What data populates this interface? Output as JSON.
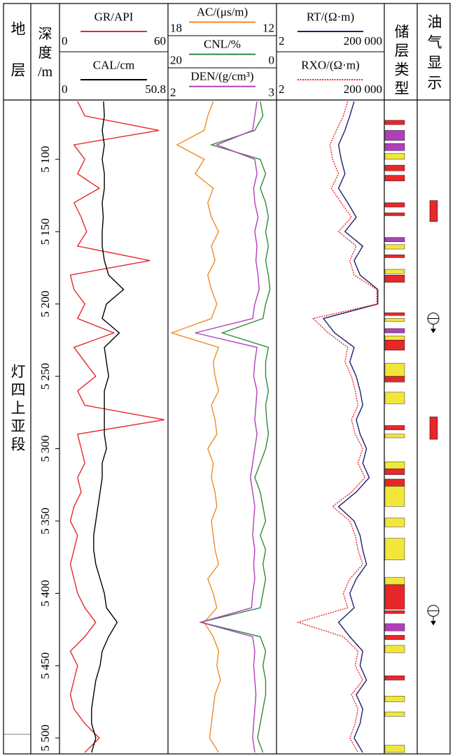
{
  "stratum_header": "地层",
  "depth_header": [
    "深",
    "度",
    "/m"
  ],
  "reservoir_header": "储层类型",
  "show_header": "油气显示",
  "stratum": "灯四上亚段",
  "chart_data": {
    "type": "welllog",
    "ylim": [
      5059,
      5511
    ],
    "yticks": [
      {
        "value": 5100,
        "label": "5 100"
      },
      {
        "value": 5150,
        "label": "5 150"
      },
      {
        "value": 5200,
        "label": "5 200"
      },
      {
        "value": 5250,
        "label": "5 250"
      },
      {
        "value": 5300,
        "label": "5 300"
      },
      {
        "value": 5350,
        "label": "5 350"
      },
      {
        "value": 5400,
        "label": "5 400"
      },
      {
        "value": 5450,
        "label": "5 450"
      },
      {
        "value": 5500,
        "label": "5 500"
      }
    ],
    "x": [
      5060,
      5070,
      5080,
      5090,
      5100,
      5110,
      5120,
      5130,
      5140,
      5150,
      5160,
      5170,
      5180,
      5190,
      5200,
      5210,
      5220,
      5230,
      5240,
      5250,
      5260,
      5270,
      5280,
      5290,
      5300,
      5310,
      5320,
      5330,
      5340,
      5350,
      5360,
      5370,
      5380,
      5390,
      5400,
      5410,
      5420,
      5430,
      5440,
      5450,
      5460,
      5470,
      5480,
      5490,
      5500,
      5510
    ],
    "series": [
      {
        "name": "GR/API",
        "color": "#e8272a",
        "xlim": [
          0,
          60
        ],
        "values": [
          10,
          14,
          55,
          8,
          14,
          10,
          22,
          8,
          12,
          15,
          10,
          50,
          6,
          8,
          14,
          10,
          30,
          8,
          14,
          20,
          10,
          14,
          58,
          10,
          12,
          14,
          10,
          12,
          8,
          6,
          10,
          8,
          6,
          8,
          10,
          14,
          20,
          14,
          6,
          10,
          8,
          6,
          8,
          14,
          22,
          14
        ]
      },
      {
        "name": "CAL/cm",
        "color": "#000000",
        "xlim": [
          0,
          50.8
        ],
        "values": [
          20.6,
          21,
          20,
          21,
          20,
          21,
          21,
          20,
          20.5,
          20,
          20,
          21,
          23,
          30,
          22,
          20,
          28,
          21,
          22,
          23,
          21,
          21,
          21,
          21,
          22,
          20,
          20,
          19,
          18,
          17,
          16,
          16,
          17,
          19,
          21,
          22,
          27,
          23,
          20,
          19,
          17,
          16,
          15,
          15,
          17,
          15
        ]
      },
      {
        "name": "AC/(μs/m)",
        "color": "#f08a24",
        "xlim": [
          18,
          12
        ],
        "values": [
          15.5,
          15.8,
          16,
          17.5,
          16,
          16.5,
          15.5,
          15.8,
          15.6,
          15.2,
          15.6,
          15.4,
          15.8,
          15.6,
          15.3,
          15.6,
          17.8,
          15.2,
          15.5,
          15.4,
          15.2,
          15.6,
          15.4,
          15.3,
          15.8,
          15.5,
          15.6,
          15.4,
          15.3,
          15.6,
          15.5,
          15.4,
          15.2,
          15.8,
          15.5,
          15.3,
          16,
          15.5,
          15.2,
          15.3,
          15.1,
          15.4,
          15.5,
          15.6,
          15.7,
          15.2
        ]
      },
      {
        "name": "CNL/%",
        "color": "#2e8b3a",
        "xlim": [
          20,
          0
        ],
        "values": [
          3,
          2.5,
          4,
          12,
          3,
          2,
          3,
          2,
          1.5,
          2,
          1.5,
          2,
          1.5,
          1.2,
          2,
          2.5,
          10,
          1.5,
          2,
          2,
          1.5,
          2,
          1.8,
          1.5,
          2,
          3,
          4,
          3,
          2.5,
          2,
          3,
          2,
          2.5,
          2,
          2.5,
          3,
          14,
          3,
          2,
          2.5,
          2,
          2,
          2.5,
          3,
          3.5,
          2.5
        ]
      },
      {
        "name": "DEN/(g/cm³)",
        "color": "#b03fb8",
        "xlim": [
          2,
          3
        ],
        "values": [
          2.82,
          2.8,
          2.78,
          2.45,
          2.8,
          2.82,
          2.79,
          2.8,
          2.83,
          2.8,
          2.82,
          2.81,
          2.83,
          2.84,
          2.8,
          2.78,
          2.25,
          2.82,
          2.8,
          2.79,
          2.82,
          2.81,
          2.8,
          2.82,
          2.8,
          2.78,
          2.76,
          2.78,
          2.8,
          2.79,
          2.78,
          2.8,
          2.79,
          2.8,
          2.78,
          2.77,
          2.3,
          2.78,
          2.8,
          2.79,
          2.8,
          2.81,
          2.8,
          2.79,
          2.78,
          2.8
        ]
      },
      {
        "name": "RT/(Ω·m)",
        "color": "#1f1f6e",
        "log": true,
        "xlim": [
          2,
          {
            "value": 200000,
            "label": "200 000"
          }
        ],
        "values": [
          8000,
          5000,
          3000,
          1500,
          2000,
          3000,
          1500,
          4000,
          10000,
          3000,
          20000,
          8000,
          15000,
          100000,
          100000,
          300,
          1000,
          8000,
          5000,
          10000,
          15000,
          20000,
          10000,
          15000,
          30000,
          20000,
          40000,
          10000,
          1500,
          8000,
          15000,
          20000,
          30000,
          10000,
          5000,
          8000,
          1500,
          5000,
          20000,
          15000,
          30000,
          10000,
          20000,
          15000,
          8000,
          20000
        ]
      },
      {
        "name": "RXO/(Ω·m)",
        "color": "#e8272a",
        "log": true,
        "line_style": "dotted",
        "xlim": [
          2,
          {
            "value": 200000,
            "label": "200 000"
          }
        ],
        "values": [
          4000,
          2500,
          1200,
          600,
          800,
          1500,
          700,
          2000,
          6000,
          1500,
          10000,
          5000,
          8000,
          90000,
          90000,
          100,
          500,
          4000,
          3000,
          6000,
          9000,
          12000,
          6000,
          9000,
          20000,
          12000,
          25000,
          6000,
          800,
          5000,
          9000,
          12000,
          20000,
          5000,
          2500,
          4000,
          20,
          2500,
          12000,
          9000,
          20000,
          6000,
          12000,
          9000,
          5000,
          12000
        ]
      }
    ],
    "intervals": [
      {
        "top": 5073,
        "bottom": 5076,
        "color": "#e8272a"
      },
      {
        "top": 5080,
        "bottom": 5087,
        "color": "#b03fb8"
      },
      {
        "top": 5089,
        "bottom": 5094,
        "color": "#b03fb8"
      },
      {
        "top": 5096,
        "bottom": 5100,
        "color": "#f2e63a"
      },
      {
        "top": 5104,
        "bottom": 5108,
        "color": "#e8272a"
      },
      {
        "top": 5111,
        "bottom": 5115,
        "color": "#e8272a"
      },
      {
        "top": 5130,
        "bottom": 5133,
        "color": "#e8272a"
      },
      {
        "top": 5137,
        "bottom": 5139,
        "color": "#e8272a"
      },
      {
        "top": 5154,
        "bottom": 5157,
        "color": "#b03fb8"
      },
      {
        "top": 5159,
        "bottom": 5162,
        "color": "#f2e63a"
      },
      {
        "top": 5166,
        "bottom": 5168,
        "color": "#e8272a"
      },
      {
        "top": 5176,
        "bottom": 5179,
        "color": "#f2e63a"
      },
      {
        "top": 5180,
        "bottom": 5185,
        "color": "#e8272a"
      },
      {
        "top": 5206,
        "bottom": 5208,
        "color": "#e8272a"
      },
      {
        "top": 5210,
        "bottom": 5212,
        "color": "#f2e63a"
      },
      {
        "top": 5217,
        "bottom": 5220,
        "color": "#b03fb8"
      },
      {
        "top": 5222,
        "bottom": 5225,
        "color": "#f2e63a"
      },
      {
        "top": 5225,
        "bottom": 5232,
        "color": "#e8272a"
      },
      {
        "top": 5241,
        "bottom": 5250,
        "color": "#f2e63a"
      },
      {
        "top": 5250,
        "bottom": 5254,
        "color": "#e8272a"
      },
      {
        "top": 5261,
        "bottom": 5269,
        "color": "#f2e63a"
      },
      {
        "top": 5284,
        "bottom": 5287,
        "color": "#e8272a"
      },
      {
        "top": 5290,
        "bottom": 5292.5,
        "color": "#f2e63a"
      },
      {
        "top": 5309,
        "bottom": 5314,
        "color": "#f2e63a"
      },
      {
        "top": 5314,
        "bottom": 5318,
        "color": "#e8272a"
      },
      {
        "top": 5321,
        "bottom": 5326,
        "color": "#e8272a"
      },
      {
        "top": 5326,
        "bottom": 5340,
        "color": "#f2e63a"
      },
      {
        "top": 5348,
        "bottom": 5354,
        "color": "#f2e63a"
      },
      {
        "top": 5362,
        "bottom": 5377,
        "color": "#f2e63a"
      },
      {
        "top": 5389,
        "bottom": 5394,
        "color": "#f2e63a"
      },
      {
        "top": 5394,
        "bottom": 5411,
        "color": "#e8272a"
      },
      {
        "top": 5412,
        "bottom": 5414,
        "color": "#e8272a"
      },
      {
        "top": 5421,
        "bottom": 5426,
        "color": "#b03fb8"
      },
      {
        "top": 5429,
        "bottom": 5432,
        "color": "#e8272a"
      },
      {
        "top": 5436,
        "bottom": 5441,
        "color": "#f2e63a"
      },
      {
        "top": 5457,
        "bottom": 5460,
        "color": "#e8272a"
      },
      {
        "top": 5471,
        "bottom": 5475,
        "color": "#f2e63a"
      },
      {
        "top": 5482,
        "bottom": 5485,
        "color": "#f2e63a"
      },
      {
        "top": 5505,
        "bottom": 5510,
        "color": "#f2e63a"
      }
    ],
    "shows": [
      {
        "top": 5128.5,
        "bottom": 5143,
        "color": "#e8272a"
      },
      {
        "top": 5278,
        "bottom": 5293.5,
        "color": "#e8272a"
      }
    ],
    "show_symbols": [
      5212,
      5414
    ]
  }
}
